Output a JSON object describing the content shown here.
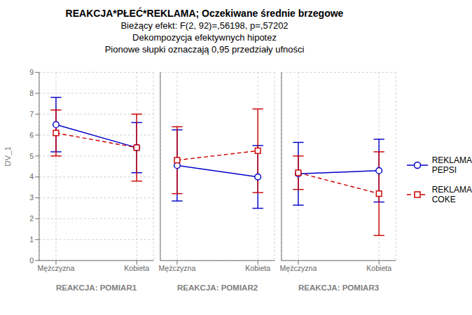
{
  "chart_data": [
    {
      "type": "line",
      "title": "REAKCJA*PŁEĆ*REKLAMA; Oczekiwane średnie brzegowe",
      "subtitle": [
        "Bieżący efekt: F(2, 92)=,56198, p=,57202",
        "Dekompozycja efektywnych hipotez",
        "Pionowe słupki oznaczają 0,95 przedziały ufności"
      ],
      "x_label": "REAKCJA: POMIAR1",
      "y_label": "DV_1",
      "categories": [
        "Mężczyzna",
        "Kobieta"
      ],
      "series": [
        {
          "name": "REKLAMA\nPEPSI",
          "color": "#0000CC",
          "marker": "circle",
          "line_style": "solid",
          "values": [
            6.5,
            5.4
          ],
          "errors": [
            1.3,
            1.2
          ]
        },
        {
          "name": "REKLAMA\nCOKE",
          "color": "#CC0000",
          "marker": "square",
          "line_style": "dashed",
          "values": [
            6.1,
            5.4
          ],
          "errors": [
            1.1,
            1.6
          ]
        }
      ],
      "ylim": [
        0,
        9
      ],
      "yticks": [
        0,
        1,
        2,
        3,
        4,
        5,
        6,
        7,
        8,
        9
      ],
      "grid": true
    },
    {
      "type": "line",
      "x_label": "REAKCJA: POMIAR2",
      "categories": [
        "Mężczyzna",
        "Kobieta"
      ],
      "series": [
        {
          "name": "REKLAMA\nPEPSI",
          "color": "#0000CC",
          "marker": "circle",
          "line_style": "solid",
          "values": [
            4.55,
            4.0
          ],
          "errors": [
            1.7,
            1.5
          ]
        },
        {
          "name": "REKLAMA\nCOKE",
          "color": "#CC0000",
          "marker": "square",
          "line_style": "dashed",
          "values": [
            4.8,
            5.25
          ],
          "errors": [
            1.6,
            2.0
          ]
        }
      ],
      "ylim": [
        0,
        9
      ],
      "yticks": [
        0,
        1,
        2,
        3,
        4,
        5,
        6,
        7,
        8,
        9
      ],
      "grid": true,
      "tick_labels": "x"
    },
    {
      "type": "line",
      "x_label": "REAKCJA: POMIAR3",
      "categories": [
        "Mężczyzna",
        "Kobieta"
      ],
      "series": [
        {
          "name": "REKLAMA\nPEPSI",
          "color": "#0000CC",
          "marker": "circle",
          "line_style": "solid",
          "values": [
            4.15,
            4.3
          ],
          "errors": [
            1.5,
            1.5
          ]
        },
        {
          "name": "REKLAMA\nCOKE",
          "color": "#CC0000",
          "marker": "square",
          "line_style": "dashed",
          "values": [
            4.2,
            3.2
          ],
          "errors": [
            0.8,
            2.0
          ]
        }
      ],
      "ylim": [
        0,
        9
      ],
      "yticks": [
        0,
        1,
        2,
        3,
        4,
        5,
        6,
        7,
        8,
        9
      ],
      "grid": true,
      "tick_labels": "x",
      "legend": "right"
    }
  ]
}
